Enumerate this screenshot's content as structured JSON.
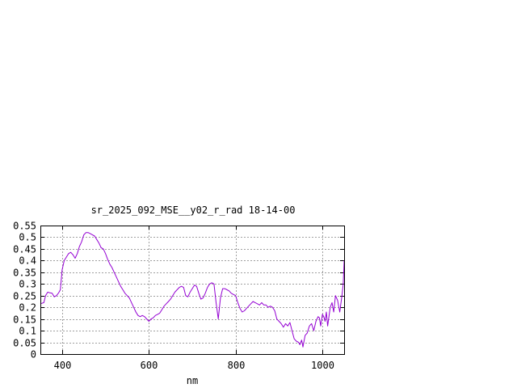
{
  "chart_data": {
    "type": "line",
    "title": "sr_2025_092_MSE__y02_r_rad 18-14-00",
    "xlabel": "nm",
    "ylabel": "",
    "xlim": [
      350,
      1050
    ],
    "ylim": [
      0,
      0.55
    ],
    "x_ticks": [
      400,
      600,
      800,
      1000
    ],
    "x_tick_labels": [
      "400",
      "600",
      "800",
      "1000"
    ],
    "y_ticks": [
      0,
      0.05,
      0.1,
      0.15,
      0.2,
      0.25,
      0.3,
      0.35,
      0.4,
      0.45,
      0.5,
      0.55
    ],
    "y_tick_labels": [
      "0",
      "0.05",
      "0.1",
      "0.15",
      "0.2",
      "0.25",
      "0.3",
      "0.35",
      "0.4",
      "0.45",
      "0.5",
      "0.55"
    ],
    "grid": true,
    "line_color": "#9400d3",
    "series": [
      {
        "x": [
          350,
          358,
          362,
          367,
          372,
          377,
          382,
          387,
          392,
          396,
          400,
          405,
          410,
          415,
          420,
          425,
          430,
          435,
          440,
          445,
          450,
          455,
          460,
          465,
          470,
          475,
          480,
          485,
          490,
          495,
          500,
          505,
          510,
          515,
          520,
          525,
          530,
          535,
          540,
          545,
          550,
          555,
          560,
          565,
          570,
          575,
          580,
          585,
          590,
          595,
          600,
          605,
          610,
          615,
          620,
          625,
          630,
          635,
          640,
          645,
          650,
          655,
          660,
          665,
          670,
          675,
          680,
          685,
          690,
          695,
          700,
          705,
          710,
          715,
          720,
          725,
          730,
          735,
          740,
          745,
          750,
          755,
          760,
          765,
          770,
          775,
          780,
          785,
          790,
          795,
          800,
          805,
          810,
          815,
          820,
          825,
          830,
          835,
          840,
          845,
          850,
          855,
          860,
          865,
          870,
          875,
          880,
          885,
          890,
          895,
          900,
          905,
          910,
          915,
          920,
          925,
          930,
          935,
          940,
          945,
          948,
          952,
          955,
          960,
          965,
          970,
          975,
          980,
          985,
          990,
          993,
          996,
          1000,
          1003,
          1006,
          1009,
          1012,
          1015,
          1018,
          1022,
          1026,
          1030,
          1035,
          1040,
          1045,
          1048,
          1050
        ],
        "y": [
          0.215,
          0.22,
          0.25,
          0.265,
          0.262,
          0.26,
          0.245,
          0.25,
          0.262,
          0.275,
          0.36,
          0.4,
          0.415,
          0.43,
          0.435,
          0.425,
          0.41,
          0.43,
          0.46,
          0.48,
          0.51,
          0.52,
          0.52,
          0.515,
          0.51,
          0.505,
          0.49,
          0.475,
          0.455,
          0.45,
          0.43,
          0.405,
          0.385,
          0.37,
          0.35,
          0.33,
          0.31,
          0.29,
          0.275,
          0.26,
          0.25,
          0.24,
          0.22,
          0.2,
          0.18,
          0.165,
          0.16,
          0.165,
          0.16,
          0.15,
          0.14,
          0.15,
          0.155,
          0.165,
          0.17,
          0.175,
          0.19,
          0.205,
          0.215,
          0.225,
          0.235,
          0.25,
          0.265,
          0.275,
          0.285,
          0.29,
          0.285,
          0.25,
          0.245,
          0.265,
          0.28,
          0.295,
          0.29,
          0.26,
          0.235,
          0.24,
          0.26,
          0.285,
          0.3,
          0.305,
          0.3,
          0.22,
          0.15,
          0.24,
          0.28,
          0.28,
          0.275,
          0.27,
          0.26,
          0.255,
          0.25,
          0.22,
          0.195,
          0.18,
          0.185,
          0.195,
          0.205,
          0.215,
          0.225,
          0.22,
          0.215,
          0.21,
          0.22,
          0.21,
          0.21,
          0.2,
          0.205,
          0.2,
          0.185,
          0.15,
          0.14,
          0.13,
          0.115,
          0.13,
          0.12,
          0.135,
          0.1,
          0.065,
          0.055,
          0.05,
          0.04,
          0.06,
          0.03,
          0.08,
          0.09,
          0.12,
          0.13,
          0.1,
          0.14,
          0.16,
          0.155,
          0.12,
          0.17,
          0.16,
          0.14,
          0.18,
          0.12,
          0.16,
          0.2,
          0.22,
          0.18,
          0.25,
          0.23,
          0.18,
          0.25,
          0.3,
          0.4
        ]
      }
    ]
  }
}
